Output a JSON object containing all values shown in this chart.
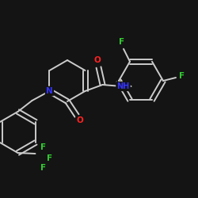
{
  "background_color": "#141414",
  "bond_color": "#cccccc",
  "atom_colors": {
    "F": "#33cc33",
    "O": "#ff2222",
    "N": "#3333ff",
    "C": "#cccccc"
  },
  "figsize": [
    2.5,
    2.5
  ],
  "dpi": 100
}
